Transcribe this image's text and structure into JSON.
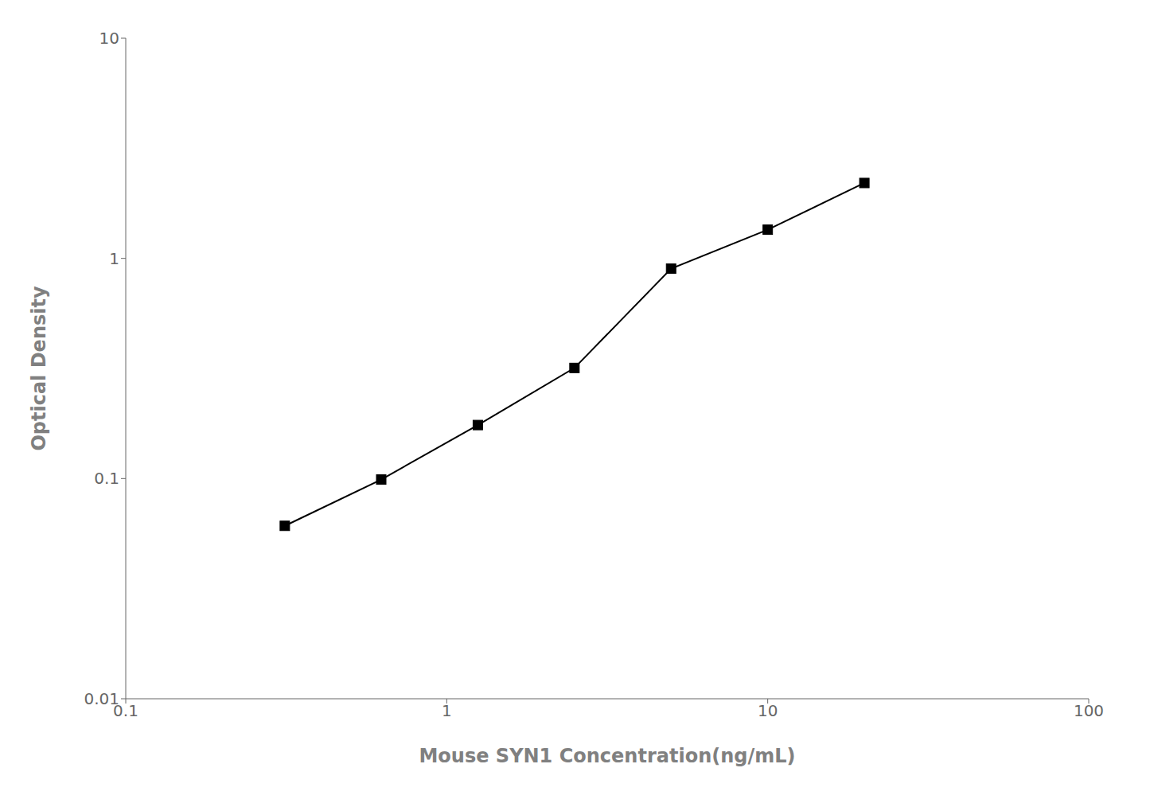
{
  "chart_data": {
    "type": "line",
    "x": [
      0.313,
      0.625,
      1.25,
      2.5,
      5.0,
      10.0,
      20.0
    ],
    "values": [
      0.061,
      0.099,
      0.175,
      0.318,
      0.898,
      1.35,
      2.2
    ],
    "xlabel": "Mouse SYN1 Concentration(ng/mL)",
    "ylabel": "Optical Density",
    "xlim": [
      0.1,
      100
    ],
    "ylim": [
      0.01,
      10
    ],
    "xticks": [
      0.1,
      1,
      10,
      100
    ],
    "yticks": [
      0.01,
      0.1,
      1,
      10
    ],
    "log": true,
    "grid": false,
    "color": "#000000",
    "marker": "square"
  }
}
